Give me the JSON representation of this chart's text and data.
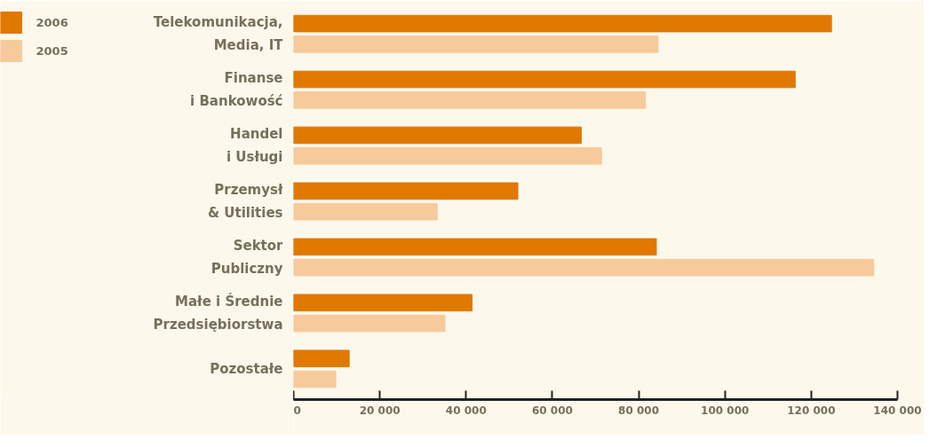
{
  "chart_data": {
    "type": "bar",
    "orientation": "horizontal",
    "categories": [
      "Telekomunikacja,\nMedia, IT",
      "Finanse\ni Bankowość",
      "Handel\ni Usługi",
      "Przemysł\n& Utilities",
      "Sektor\nPubliczny",
      "Małe i Średnie\nPrzedsiębiorstwa",
      "Pozostałe"
    ],
    "series": [
      {
        "name": "2006",
        "color": "#e17800",
        "values": [
          124700,
          116300,
          66700,
          52000,
          84100,
          41400,
          12900
        ]
      },
      {
        "name": "2005",
        "color": "#f7ca9c",
        "values": [
          84500,
          81600,
          71400,
          33300,
          134500,
          35100,
          9800
        ]
      }
    ],
    "xlim": [
      0,
      140000
    ],
    "xticks": [
      {
        "value": 0,
        "label": "0"
      },
      {
        "value": 20000,
        "label": "20 000"
      },
      {
        "value": 40000,
        "label": "40 000"
      },
      {
        "value": 60000,
        "label": "60 000"
      },
      {
        "value": 80000,
        "label": "80 000"
      },
      {
        "value": 100000,
        "label": "100 000"
      },
      {
        "value": 120000,
        "label": "120 000"
      },
      {
        "value": 140000,
        "label": "140 000"
      }
    ],
    "grid": false,
    "legend": "top left"
  }
}
